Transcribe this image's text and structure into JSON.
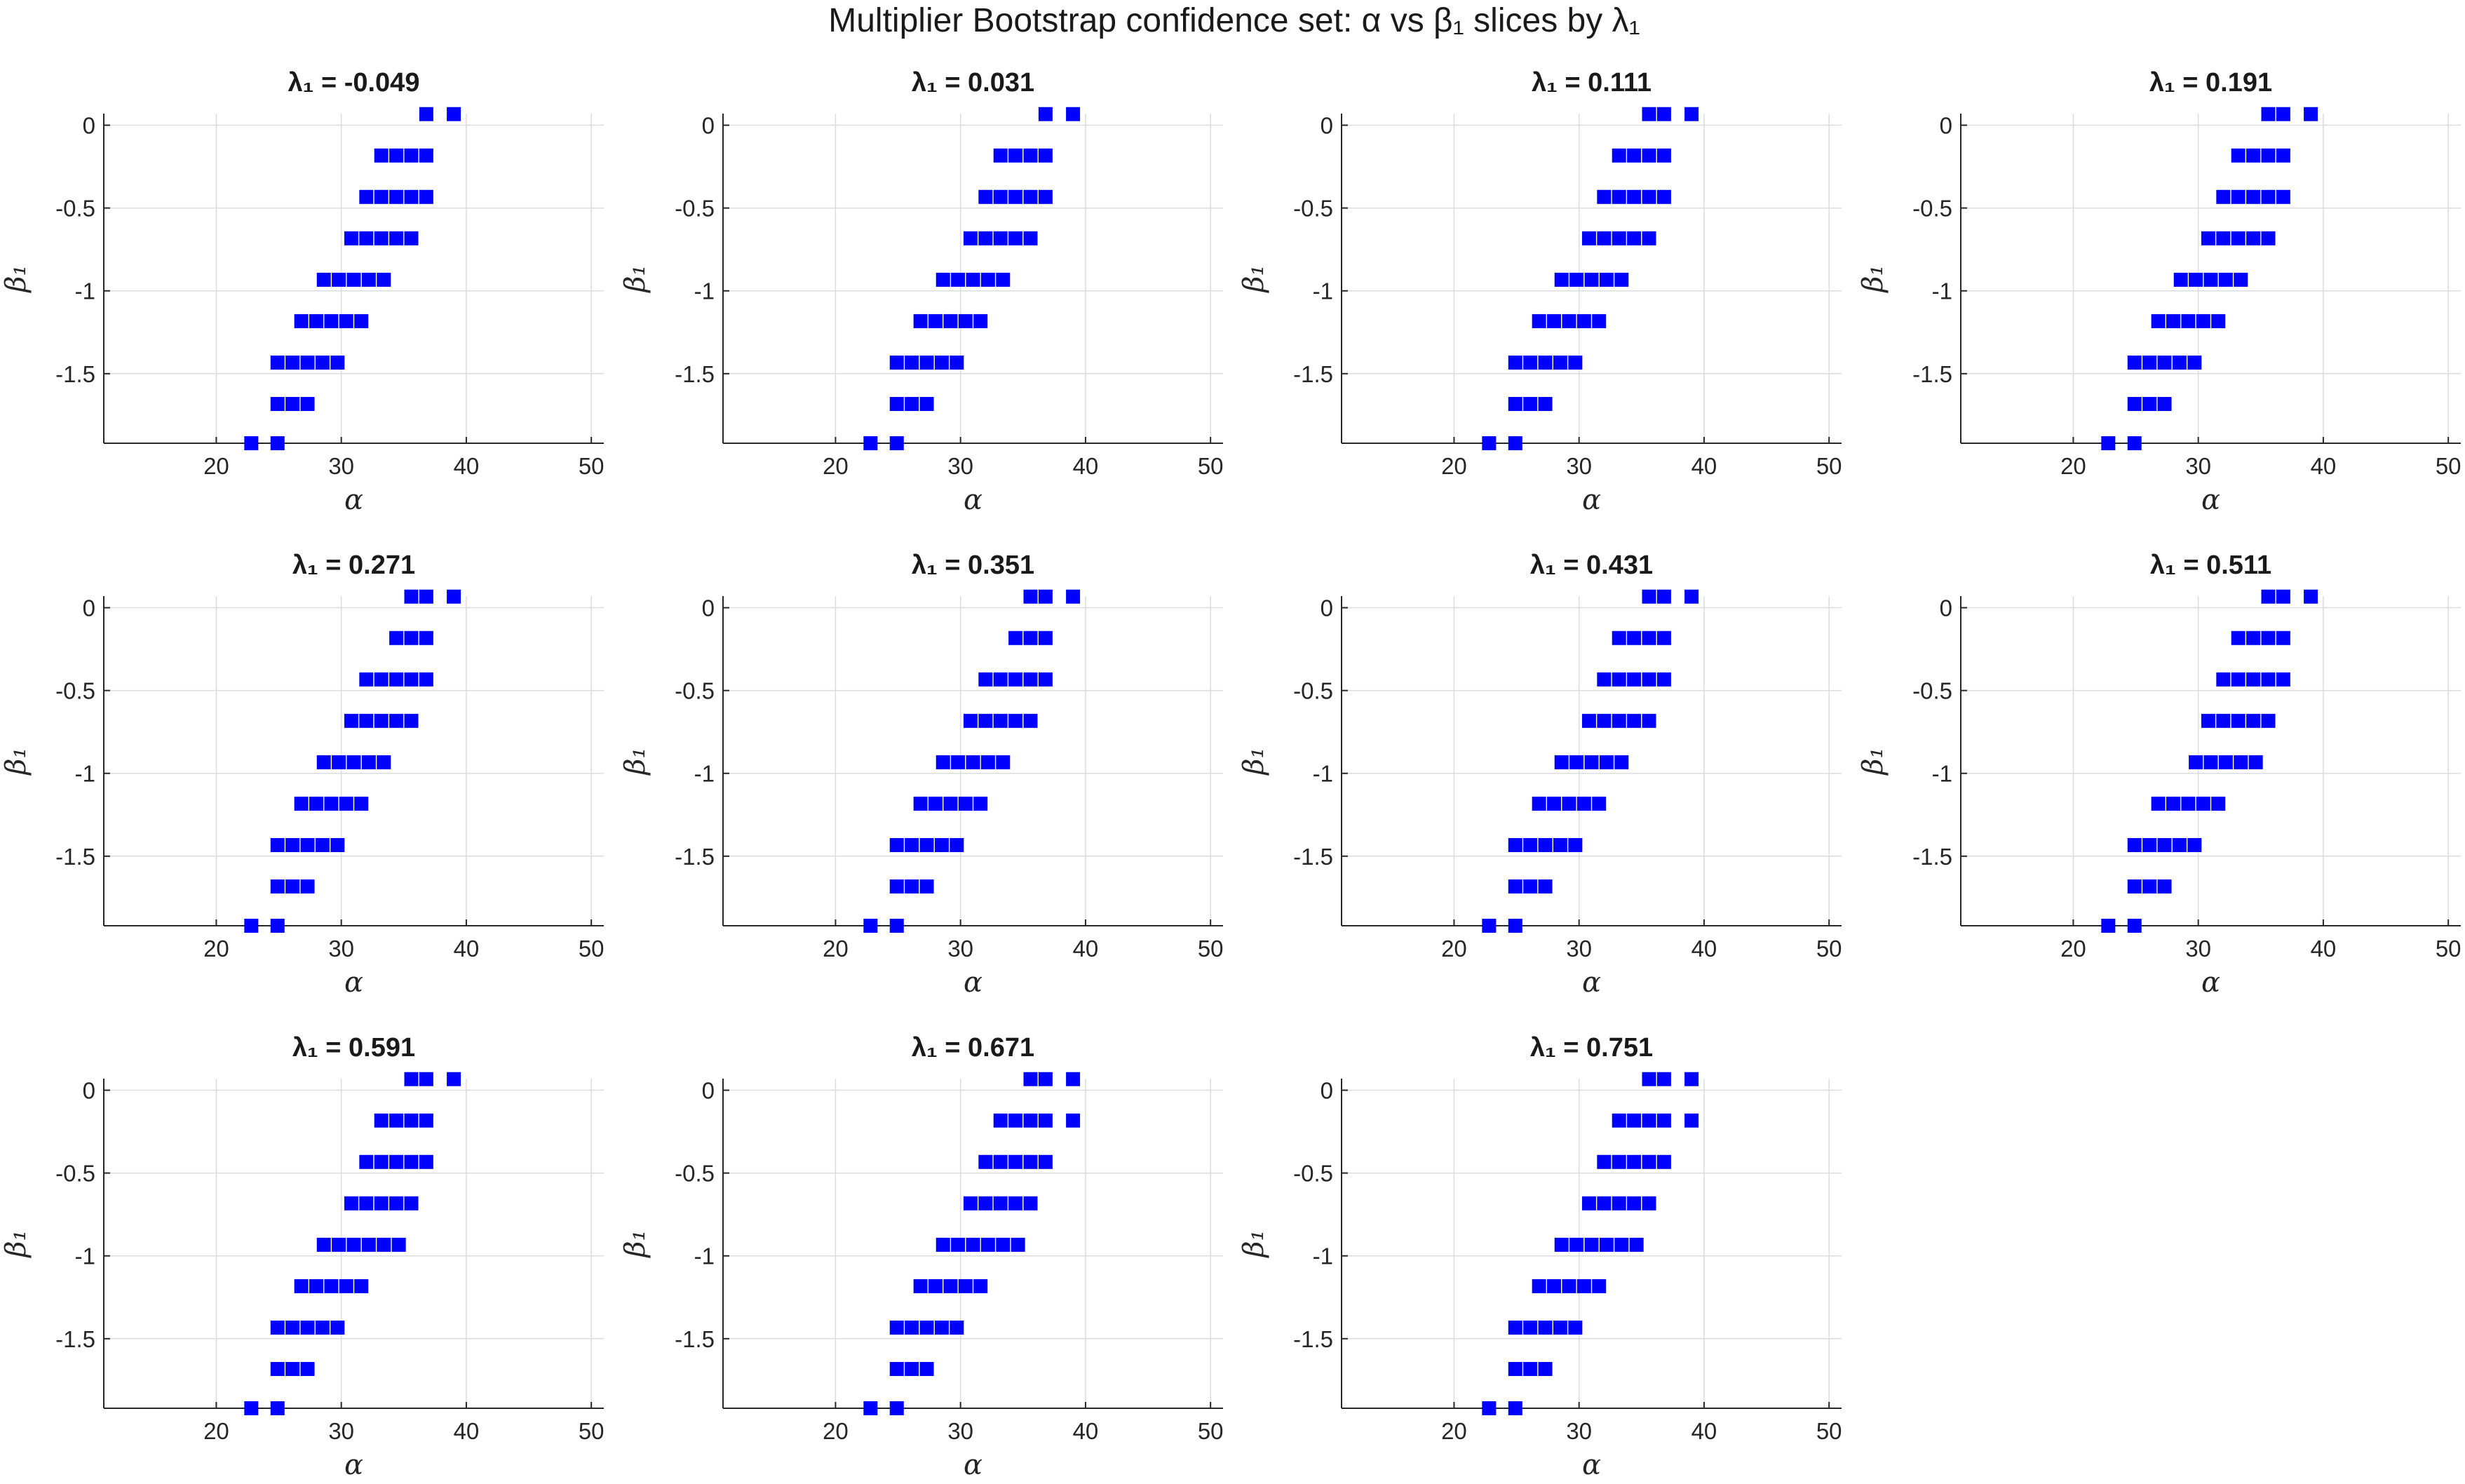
{
  "figure_title": "Multiplier Bootstrap confidence set: α vs β₁ slices by λ₁",
  "chart_data": {
    "type": "scatter",
    "layout": "3x4 grid of subplots",
    "marker": "filled square",
    "marker_color": "#0000ff",
    "xlabel": "α",
    "ylabel": "β₁",
    "xlim": [
      11,
      51
    ],
    "ylim": [
      -1.92,
      0.07
    ],
    "xticks": [
      20,
      30,
      40,
      50
    ],
    "xtick_labels": [
      "20",
      "30",
      "40",
      "50"
    ],
    "yticks": [
      0,
      -0.5,
      -1,
      -1.5
    ],
    "ytick_labels": [
      "0",
      "-0.5",
      "-1",
      "-1.5"
    ],
    "grid": true,
    "panels": [
      {
        "title": "λ₁ = -0.049",
        "rows": [
          {
            "beta": 0.067,
            "alpha": [
              36.8,
              39.0
            ]
          },
          {
            "beta": -0.183,
            "alpha": [
              33.2,
              34.4,
              35.6,
              36.8
            ]
          },
          {
            "beta": -0.433,
            "alpha": [
              32.0,
              33.2,
              34.4,
              35.6,
              36.8
            ]
          },
          {
            "beta": -0.683,
            "alpha": [
              30.8,
              32.0,
              33.2,
              34.4,
              35.6
            ]
          },
          {
            "beta": -0.933,
            "alpha": [
              28.6,
              29.8,
              31.0,
              32.2,
              33.4
            ]
          },
          {
            "beta": -1.183,
            "alpha": [
              26.8,
              28.0,
              29.2,
              30.4,
              31.6
            ]
          },
          {
            "beta": -1.433,
            "alpha": [
              24.9,
              26.1,
              27.3,
              28.5,
              29.7
            ]
          },
          {
            "beta": -1.683,
            "alpha": [
              24.9,
              26.1,
              27.3
            ]
          },
          {
            "beta": -1.92,
            "alpha": [
              22.8,
              24.9
            ]
          }
        ]
      },
      {
        "title": "λ₁ = 0.031",
        "rows": [
          {
            "beta": 0.067,
            "alpha": [
              36.8,
              39.0
            ]
          },
          {
            "beta": -0.183,
            "alpha": [
              33.2,
              34.4,
              35.6,
              36.8
            ]
          },
          {
            "beta": -0.433,
            "alpha": [
              32.0,
              33.2,
              34.4,
              35.6,
              36.8
            ]
          },
          {
            "beta": -0.683,
            "alpha": [
              30.8,
              32.0,
              33.2,
              34.4,
              35.6
            ]
          },
          {
            "beta": -0.933,
            "alpha": [
              28.6,
              29.8,
              31.0,
              32.2,
              33.4
            ]
          },
          {
            "beta": -1.183,
            "alpha": [
              26.8,
              28.0,
              29.2,
              30.4,
              31.6
            ]
          },
          {
            "beta": -1.433,
            "alpha": [
              24.9,
              26.1,
              27.3,
              28.5,
              29.7
            ]
          },
          {
            "beta": -1.683,
            "alpha": [
              24.9,
              26.1,
              27.3
            ]
          },
          {
            "beta": -1.92,
            "alpha": [
              22.8,
              24.9
            ]
          }
        ]
      },
      {
        "title": "λ₁ = 0.111",
        "rows": [
          {
            "beta": 0.067,
            "alpha": [
              35.6,
              36.8,
              39.0
            ]
          },
          {
            "beta": -0.183,
            "alpha": [
              33.2,
              34.4,
              35.6,
              36.8
            ]
          },
          {
            "beta": -0.433,
            "alpha": [
              32.0,
              33.2,
              34.4,
              35.6,
              36.8
            ]
          },
          {
            "beta": -0.683,
            "alpha": [
              30.8,
              32.0,
              33.2,
              34.4,
              35.6
            ]
          },
          {
            "beta": -0.933,
            "alpha": [
              28.6,
              29.8,
              31.0,
              32.2,
              33.4
            ]
          },
          {
            "beta": -1.183,
            "alpha": [
              26.8,
              28.0,
              29.2,
              30.4,
              31.6
            ]
          },
          {
            "beta": -1.433,
            "alpha": [
              24.9,
              26.1,
              27.3,
              28.5,
              29.7
            ]
          },
          {
            "beta": -1.683,
            "alpha": [
              24.9,
              26.1,
              27.3
            ]
          },
          {
            "beta": -1.92,
            "alpha": [
              22.8,
              24.9
            ]
          }
        ]
      },
      {
        "title": "λ₁ = 0.191",
        "rows": [
          {
            "beta": 0.067,
            "alpha": [
              35.6,
              36.8,
              39.0
            ]
          },
          {
            "beta": -0.183,
            "alpha": [
              33.2,
              34.4,
              35.6,
              36.8
            ]
          },
          {
            "beta": -0.433,
            "alpha": [
              32.0,
              33.2,
              34.4,
              35.6,
              36.8
            ]
          },
          {
            "beta": -0.683,
            "alpha": [
              30.8,
              32.0,
              33.2,
              34.4,
              35.6
            ]
          },
          {
            "beta": -0.933,
            "alpha": [
              28.6,
              29.8,
              31.0,
              32.2,
              33.4
            ]
          },
          {
            "beta": -1.183,
            "alpha": [
              26.8,
              28.0,
              29.2,
              30.4,
              31.6
            ]
          },
          {
            "beta": -1.433,
            "alpha": [
              24.9,
              26.1,
              27.3,
              28.5,
              29.7
            ]
          },
          {
            "beta": -1.683,
            "alpha": [
              24.9,
              26.1,
              27.3
            ]
          },
          {
            "beta": -1.92,
            "alpha": [
              22.8,
              24.9
            ]
          }
        ]
      },
      {
        "title": "λ₁ = 0.271",
        "rows": [
          {
            "beta": 0.067,
            "alpha": [
              35.6,
              36.8,
              39.0
            ]
          },
          {
            "beta": -0.183,
            "alpha": [
              34.4,
              35.6,
              36.8
            ]
          },
          {
            "beta": -0.433,
            "alpha": [
              32.0,
              33.2,
              34.4,
              35.6,
              36.8
            ]
          },
          {
            "beta": -0.683,
            "alpha": [
              30.8,
              32.0,
              33.2,
              34.4,
              35.6
            ]
          },
          {
            "beta": -0.933,
            "alpha": [
              28.6,
              29.8,
              31.0,
              32.2,
              33.4
            ]
          },
          {
            "beta": -1.183,
            "alpha": [
              26.8,
              28.0,
              29.2,
              30.4,
              31.6
            ]
          },
          {
            "beta": -1.433,
            "alpha": [
              24.9,
              26.1,
              27.3,
              28.5,
              29.7
            ]
          },
          {
            "beta": -1.683,
            "alpha": [
              24.9,
              26.1,
              27.3
            ]
          },
          {
            "beta": -1.92,
            "alpha": [
              22.8,
              24.9
            ]
          }
        ]
      },
      {
        "title": "λ₁ = 0.351",
        "rows": [
          {
            "beta": 0.067,
            "alpha": [
              35.6,
              36.8,
              39.0
            ]
          },
          {
            "beta": -0.183,
            "alpha": [
              34.4,
              35.6,
              36.8
            ]
          },
          {
            "beta": -0.433,
            "alpha": [
              32.0,
              33.2,
              34.4,
              35.6,
              36.8
            ]
          },
          {
            "beta": -0.683,
            "alpha": [
              30.8,
              32.0,
              33.2,
              34.4,
              35.6
            ]
          },
          {
            "beta": -0.933,
            "alpha": [
              28.6,
              29.8,
              31.0,
              32.2,
              33.4
            ]
          },
          {
            "beta": -1.183,
            "alpha": [
              26.8,
              28.0,
              29.2,
              30.4,
              31.6
            ]
          },
          {
            "beta": -1.433,
            "alpha": [
              24.9,
              26.1,
              27.3,
              28.5,
              29.7
            ]
          },
          {
            "beta": -1.683,
            "alpha": [
              24.9,
              26.1,
              27.3
            ]
          },
          {
            "beta": -1.92,
            "alpha": [
              22.8,
              24.9
            ]
          }
        ]
      },
      {
        "title": "λ₁ = 0.431",
        "rows": [
          {
            "beta": 0.067,
            "alpha": [
              35.6,
              36.8,
              39.0
            ]
          },
          {
            "beta": -0.183,
            "alpha": [
              33.2,
              34.4,
              35.6,
              36.8
            ]
          },
          {
            "beta": -0.433,
            "alpha": [
              32.0,
              33.2,
              34.4,
              35.6,
              36.8
            ]
          },
          {
            "beta": -0.683,
            "alpha": [
              30.8,
              32.0,
              33.2,
              34.4,
              35.6
            ]
          },
          {
            "beta": -0.933,
            "alpha": [
              28.6,
              29.8,
              31.0,
              32.2,
              33.4
            ]
          },
          {
            "beta": -1.183,
            "alpha": [
              26.8,
              28.0,
              29.2,
              30.4,
              31.6
            ]
          },
          {
            "beta": -1.433,
            "alpha": [
              24.9,
              26.1,
              27.3,
              28.5,
              29.7
            ]
          },
          {
            "beta": -1.683,
            "alpha": [
              24.9,
              26.1,
              27.3
            ]
          },
          {
            "beta": -1.92,
            "alpha": [
              22.8,
              24.9
            ]
          }
        ]
      },
      {
        "title": "λ₁ = 0.511",
        "rows": [
          {
            "beta": 0.067,
            "alpha": [
              35.6,
              36.8,
              39.0
            ]
          },
          {
            "beta": -0.183,
            "alpha": [
              33.2,
              34.4,
              35.6,
              36.8
            ]
          },
          {
            "beta": -0.433,
            "alpha": [
              32.0,
              33.2,
              34.4,
              35.6,
              36.8
            ]
          },
          {
            "beta": -0.683,
            "alpha": [
              30.8,
              32.0,
              33.2,
              34.4,
              35.6
            ]
          },
          {
            "beta": -0.933,
            "alpha": [
              29.8,
              31.0,
              32.2,
              33.4,
              34.6
            ]
          },
          {
            "beta": -1.183,
            "alpha": [
              26.8,
              28.0,
              29.2,
              30.4,
              31.6
            ]
          },
          {
            "beta": -1.433,
            "alpha": [
              24.9,
              26.1,
              27.3,
              28.5,
              29.7
            ]
          },
          {
            "beta": -1.683,
            "alpha": [
              24.9,
              26.1,
              27.3
            ]
          },
          {
            "beta": -1.92,
            "alpha": [
              22.8,
              24.9
            ]
          }
        ]
      },
      {
        "title": "λ₁ = 0.591",
        "rows": [
          {
            "beta": 0.067,
            "alpha": [
              35.6,
              36.8,
              39.0
            ]
          },
          {
            "beta": -0.183,
            "alpha": [
              33.2,
              34.4,
              35.6,
              36.8
            ]
          },
          {
            "beta": -0.433,
            "alpha": [
              32.0,
              33.2,
              34.4,
              35.6,
              36.8
            ]
          },
          {
            "beta": -0.683,
            "alpha": [
              30.8,
              32.0,
              33.2,
              34.4,
              35.6
            ]
          },
          {
            "beta": -0.933,
            "alpha": [
              28.6,
              29.8,
              31.0,
              32.2,
              33.4,
              34.6
            ]
          },
          {
            "beta": -1.183,
            "alpha": [
              26.8,
              28.0,
              29.2,
              30.4,
              31.6
            ]
          },
          {
            "beta": -1.433,
            "alpha": [
              24.9,
              26.1,
              27.3,
              28.5,
              29.7
            ]
          },
          {
            "beta": -1.683,
            "alpha": [
              24.9,
              26.1,
              27.3
            ]
          },
          {
            "beta": -1.92,
            "alpha": [
              22.8,
              24.9
            ]
          }
        ]
      },
      {
        "title": "λ₁ = 0.671",
        "rows": [
          {
            "beta": 0.067,
            "alpha": [
              35.6,
              36.8,
              39.0
            ]
          },
          {
            "beta": -0.183,
            "alpha": [
              33.2,
              34.4,
              35.6,
              36.8,
              39.0
            ]
          },
          {
            "beta": -0.433,
            "alpha": [
              32.0,
              33.2,
              34.4,
              35.6,
              36.8
            ]
          },
          {
            "beta": -0.683,
            "alpha": [
              30.8,
              32.0,
              33.2,
              34.4,
              35.6
            ]
          },
          {
            "beta": -0.933,
            "alpha": [
              28.6,
              29.8,
              31.0,
              32.2,
              33.4,
              34.6
            ]
          },
          {
            "beta": -1.183,
            "alpha": [
              26.8,
              28.0,
              29.2,
              30.4,
              31.6
            ]
          },
          {
            "beta": -1.433,
            "alpha": [
              24.9,
              26.1,
              27.3,
              28.5,
              29.7
            ]
          },
          {
            "beta": -1.683,
            "alpha": [
              24.9,
              26.1,
              27.3
            ]
          },
          {
            "beta": -1.92,
            "alpha": [
              22.8,
              24.9
            ]
          }
        ]
      },
      {
        "title": "λ₁ = 0.751",
        "rows": [
          {
            "beta": 0.067,
            "alpha": [
              35.6,
              36.8,
              39.0
            ]
          },
          {
            "beta": -0.183,
            "alpha": [
              33.2,
              34.4,
              35.6,
              36.8,
              39.0
            ]
          },
          {
            "beta": -0.433,
            "alpha": [
              32.0,
              33.2,
              34.4,
              35.6,
              36.8
            ]
          },
          {
            "beta": -0.683,
            "alpha": [
              30.8,
              32.0,
              33.2,
              34.4,
              35.6
            ]
          },
          {
            "beta": -0.933,
            "alpha": [
              28.6,
              29.8,
              31.0,
              32.2,
              33.4,
              34.6
            ]
          },
          {
            "beta": -1.183,
            "alpha": [
              26.8,
              28.0,
              29.2,
              30.4,
              31.6
            ]
          },
          {
            "beta": -1.433,
            "alpha": [
              24.9,
              26.1,
              27.3,
              28.5,
              29.7
            ]
          },
          {
            "beta": -1.683,
            "alpha": [
              24.9,
              26.1,
              27.3
            ]
          },
          {
            "beta": -1.92,
            "alpha": [
              22.8,
              24.9
            ]
          }
        ]
      }
    ]
  }
}
